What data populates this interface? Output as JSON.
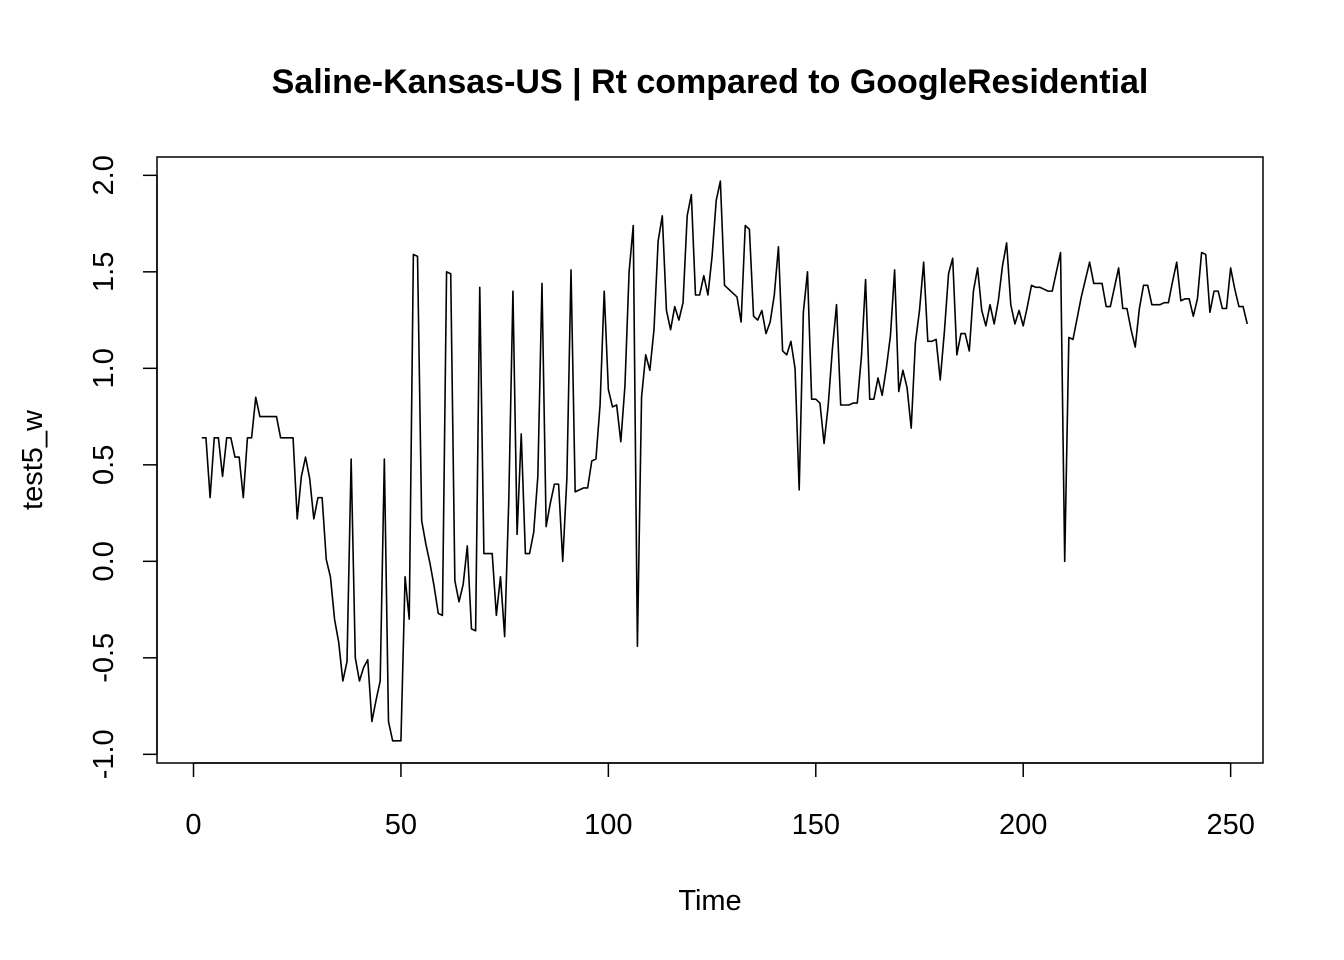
{
  "chart_data": {
    "type": "line",
    "title": "Saline-Kansas-US | Rt compared to GoogleResidential",
    "xlabel": "Time",
    "ylabel": "test5_w",
    "xlim": [
      -8.8,
      257.8
    ],
    "ylim": [
      -1.045,
      2.095
    ],
    "x_ticks": [
      0,
      50,
      100,
      150,
      200,
      250
    ],
    "y_ticks": [
      -1.0,
      -0.5,
      0.0,
      0.5,
      1.0,
      1.5,
      2.0
    ],
    "x_tick_labels": [
      "0",
      "50",
      "100",
      "150",
      "200",
      "250"
    ],
    "y_tick_labels": [
      "-1.0",
      "-0.5",
      "0.0",
      "0.5",
      "1.0",
      "1.5",
      "2.0"
    ],
    "grid": false,
    "series": [
      {
        "x_start": 2,
        "x_step": 1,
        "color": "#000000",
        "values": [
          0.64,
          0.64,
          0.33,
          0.64,
          0.64,
          0.44,
          0.64,
          0.64,
          0.54,
          0.54,
          0.33,
          0.64,
          0.64,
          0.85,
          0.75,
          0.75,
          0.75,
          0.75,
          0.75,
          0.64,
          0.64,
          0.64,
          0.64,
          0.22,
          0.44,
          0.54,
          0.43,
          0.22,
          0.33,
          0.33,
          0.01,
          -0.08,
          -0.3,
          -0.42,
          -0.62,
          -0.52,
          0.53,
          -0.5,
          -0.62,
          -0.55,
          -0.51,
          -0.83,
          -0.72,
          -0.62,
          0.53,
          -0.83,
          -0.93,
          -0.93,
          -0.93,
          -0.08,
          -0.3,
          1.59,
          1.58,
          0.21,
          0.09,
          -0.01,
          -0.13,
          -0.27,
          -0.28,
          1.5,
          1.49,
          -0.1,
          -0.21,
          -0.12,
          0.08,
          -0.35,
          -0.36,
          1.42,
          0.04,
          0.04,
          0.04,
          -0.28,
          -0.08,
          -0.39,
          0.32,
          1.4,
          0.14,
          0.66,
          0.04,
          0.04,
          0.15,
          0.44,
          1.44,
          0.18,
          0.3,
          0.4,
          0.4,
          0.0,
          0.43,
          1.51,
          0.36,
          0.37,
          0.38,
          0.38,
          0.52,
          0.53,
          0.81,
          1.4,
          0.89,
          0.8,
          0.81,
          0.62,
          0.91,
          1.5,
          1.74,
          -0.44,
          0.85,
          1.07,
          0.99,
          1.2,
          1.66,
          1.79,
          1.3,
          1.2,
          1.32,
          1.25,
          1.34,
          1.79,
          1.9,
          1.38,
          1.38,
          1.48,
          1.38,
          1.58,
          1.87,
          1.97,
          1.43,
          1.41,
          1.39,
          1.37,
          1.24,
          1.74,
          1.72,
          1.27,
          1.25,
          1.3,
          1.18,
          1.24,
          1.38,
          1.63,
          1.09,
          1.07,
          1.14,
          1.0,
          0.37,
          1.29,
          1.5,
          0.84,
          0.84,
          0.82,
          0.61,
          0.81,
          1.1,
          1.33,
          0.81,
          0.81,
          0.81,
          0.82,
          0.82,
          1.06,
          1.46,
          0.84,
          0.84,
          0.95,
          0.86,
          1.0,
          1.17,
          1.51,
          0.88,
          0.99,
          0.9,
          0.69,
          1.13,
          1.3,
          1.55,
          1.14,
          1.14,
          1.15,
          0.94,
          1.19,
          1.49,
          1.57,
          1.07,
          1.18,
          1.18,
          1.09,
          1.4,
          1.52,
          1.3,
          1.22,
          1.33,
          1.23,
          1.35,
          1.53,
          1.65,
          1.33,
          1.23,
          1.3,
          1.22,
          1.32,
          1.43,
          1.42,
          1.42,
          1.41,
          1.4,
          1.4,
          1.5,
          1.6,
          0.0,
          1.16,
          1.15,
          1.26,
          1.37,
          1.46,
          1.55,
          1.44,
          1.44,
          1.44,
          1.32,
          1.32,
          1.42,
          1.52,
          1.31,
          1.31,
          1.2,
          1.11,
          1.31,
          1.43,
          1.43,
          1.33,
          1.33,
          1.33,
          1.34,
          1.34,
          1.45,
          1.55,
          1.35,
          1.36,
          1.36,
          1.27,
          1.36,
          1.6,
          1.59,
          1.29,
          1.4,
          1.4,
          1.31,
          1.31,
          1.52,
          1.41,
          1.32,
          1.32,
          1.23
        ]
      }
    ]
  }
}
